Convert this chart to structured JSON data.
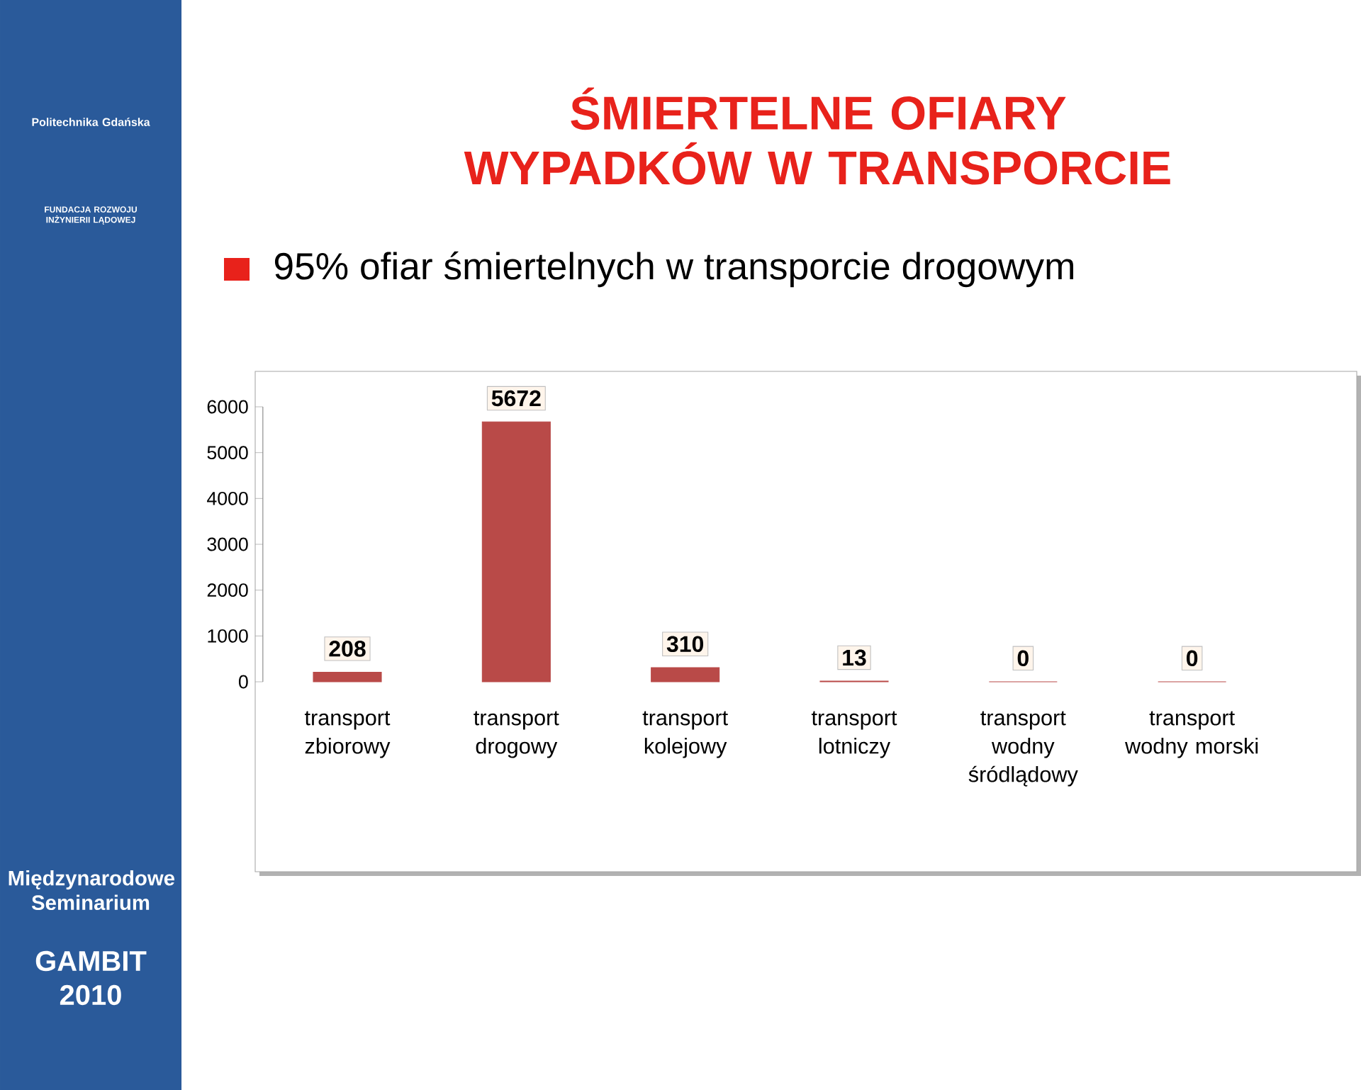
{
  "chart_data": {
    "type": "bar",
    "title": "ŚMIERTELNE OFIARY WYPADKÓW W TRANSPORCIE",
    "subtitle": "95% ofiar śmiertelnych w transporcie drogowym",
    "categories": [
      "transport zbiorowy",
      "transport drogowy",
      "transport kolejowy",
      "transport lotniczy",
      "transport wodny śródlądowy",
      "transport wodny morski"
    ],
    "values": [
      208,
      5672,
      310,
      13,
      0,
      0
    ],
    "color": "#b94a48",
    "ylim": [
      0,
      6000
    ],
    "yticks": [
      0,
      1000,
      2000,
      3000,
      4000,
      5000,
      6000
    ],
    "data_labels": true,
    "annotations": [
      "Politechnika Gdańska",
      "FUNDACJA ROZWOJU INŻYNIERII LĄDOWEJ",
      "Międzynarodowe Seminarium",
      "GAMBIT 2010"
    ]
  }
}
